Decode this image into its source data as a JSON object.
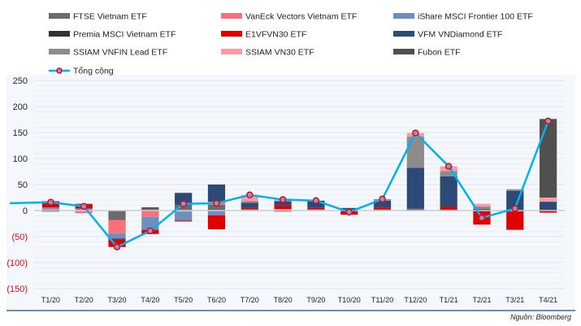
{
  "chart_data": {
    "type": "bar",
    "stacked": true,
    "title": "",
    "xlabel": "",
    "ylabel": "",
    "ylim": [
      -150,
      250
    ],
    "yticks": [
      250,
      200,
      150,
      100,
      50,
      0,
      -50,
      -100,
      -150
    ],
    "ytick_labels": [
      "250",
      "200",
      "150",
      "100",
      "50",
      "0",
      "(50)",
      "(100)",
      "(150)"
    ],
    "negative_tick_color": "#e8001c",
    "grid": true,
    "legend_position": "top",
    "categories": [
      "T1/20",
      "T2/20",
      "T3/20",
      "T4/20",
      "T5/20",
      "T6/20",
      "T7/20",
      "T8/20",
      "T9/20",
      "T10/20",
      "T11/20",
      "T12/20",
      "T1/21",
      "T2/21",
      "T3/21",
      "T4/21"
    ],
    "series": [
      {
        "name": "FTSE Vietnam ETF",
        "color": "#6b6b6b",
        "values": [
          2,
          1,
          -18,
          4,
          11,
          11,
          3,
          0,
          0,
          2,
          2,
          4,
          0,
          0,
          0,
          0
        ]
      },
      {
        "name": "VanEck Vectors Vietnam ETF",
        "color": "#ff6f7a",
        "values": [
          1,
          -5,
          -26,
          -12,
          -2,
          6,
          0,
          3,
          2,
          0,
          0,
          0,
          0,
          0,
          0,
          0
        ]
      },
      {
        "name": "iShare MSCI Frontier 100 ETF",
        "color": "#6a8fc0",
        "values": [
          3,
          3,
          -10,
          -25,
          -17,
          -9,
          0,
          0,
          0,
          0,
          0,
          0,
          0,
          0,
          0,
          0
        ]
      },
      {
        "name": "Premia MSCI Vietnam ETF",
        "color": "#333333",
        "values": [
          -2,
          0,
          -2,
          2,
          0,
          0,
          0,
          -2,
          0,
          0,
          0,
          0,
          2,
          0,
          -2,
          0
        ]
      },
      {
        "name": "E1VFVN30 ETF",
        "color": "#e00000",
        "values": [
          12,
          8,
          -14,
          -8,
          -2,
          -27,
          3,
          7,
          3,
          -8,
          4,
          0,
          5,
          -27,
          -35,
          -4
        ]
      },
      {
        "name": "VFM VNDiamond ETF",
        "color": "#2b4a75",
        "values": [
          0,
          1,
          0,
          0,
          23,
          33,
          9,
          8,
          14,
          3,
          13,
          78,
          59,
          3,
          38,
          17
        ]
      },
      {
        "name": "SSIAM VNFIN Lead ETF",
        "color": "#8c8c8c",
        "values": [
          0,
          0,
          0,
          0,
          0,
          0,
          3,
          0,
          0,
          0,
          3,
          60,
          10,
          5,
          3,
          0
        ]
      },
      {
        "name": "SSIAM VN30 ETF",
        "color": "#ff9aa3",
        "values": [
          0,
          0,
          0,
          0,
          0,
          0,
          12,
          5,
          0,
          0,
          0,
          7,
          9,
          5,
          0,
          8
        ]
      },
      {
        "name": "Fubon ETF",
        "color": "#505050",
        "values": [
          0,
          0,
          0,
          0,
          0,
          0,
          0,
          0,
          0,
          0,
          0,
          0,
          0,
          0,
          0,
          151
        ]
      }
    ],
    "line": {
      "name": "Tổng cộng",
      "color": "#00b0f0",
      "marker_color": "#e8001c",
      "values": [
        16,
        8,
        -70,
        -39,
        13,
        14,
        30,
        21,
        19,
        -3,
        22,
        149,
        85,
        -14,
        4,
        172
      ]
    }
  },
  "source": "Nguồn: Bloomberg"
}
